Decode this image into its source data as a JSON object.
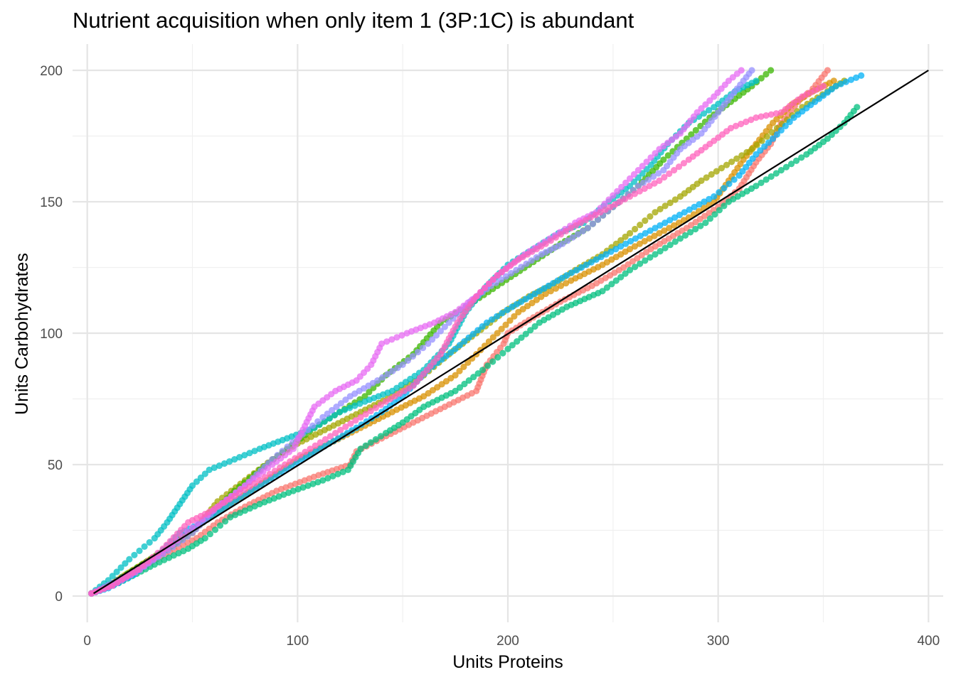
{
  "chart_data": {
    "type": "scatter",
    "title": "Nutrient acquisition when only item 1 (3P:1C) is abundant",
    "xlabel": "Units Proteins",
    "ylabel": "Units Carbohydrates",
    "xlim": [
      -7,
      407
    ],
    "ylim": [
      -10,
      210
    ],
    "x_ticks": [
      0,
      100,
      200,
      300,
      400
    ],
    "x_tick_labels": [
      "0",
      "100",
      "200",
      "300",
      "400"
    ],
    "y_ticks": [
      0,
      50,
      100,
      150,
      200
    ],
    "y_tick_labels": [
      "0",
      "50",
      "100",
      "150",
      "200"
    ],
    "grid": true,
    "legend": "none",
    "point_opacity": 0.75,
    "reference_line": {
      "points": [
        [
          3,
          1
        ],
        [
          400,
          200
        ]
      ],
      "color": "#000000"
    },
    "series": [
      {
        "color": "#F8766D",
        "points": [
          [
            2,
            1
          ],
          [
            10,
            4
          ],
          [
            20,
            8
          ],
          [
            35,
            15
          ],
          [
            52,
            22
          ],
          [
            62,
            28
          ],
          [
            75,
            34
          ],
          [
            90,
            40
          ],
          [
            110,
            46
          ],
          [
            125,
            50
          ],
          [
            128,
            55
          ],
          [
            140,
            60
          ],
          [
            155,
            66
          ],
          [
            170,
            72
          ],
          [
            185,
            78
          ],
          [
            190,
            88
          ],
          [
            198,
            96
          ],
          [
            200,
            100
          ],
          [
            210,
            105
          ],
          [
            225,
            112
          ],
          [
            240,
            118
          ],
          [
            255,
            125
          ],
          [
            268,
            132
          ],
          [
            285,
            140
          ],
          [
            300,
            148
          ],
          [
            310,
            155
          ],
          [
            318,
            165
          ],
          [
            325,
            172
          ],
          [
            330,
            180
          ],
          [
            338,
            188
          ],
          [
            345,
            193
          ],
          [
            352,
            200
          ]
        ]
      },
      {
        "color": "#D89000",
        "points": [
          [
            2,
            1
          ],
          [
            12,
            5
          ],
          [
            22,
            10
          ],
          [
            38,
            18
          ],
          [
            55,
            28
          ],
          [
            70,
            36
          ],
          [
            85,
            44
          ],
          [
            100,
            52
          ],
          [
            115,
            58
          ],
          [
            130,
            64
          ],
          [
            145,
            70
          ],
          [
            160,
            76
          ],
          [
            175,
            84
          ],
          [
            185,
            92
          ],
          [
            195,
            100
          ],
          [
            205,
            108
          ],
          [
            218,
            115
          ],
          [
            230,
            120
          ],
          [
            245,
            126
          ],
          [
            258,
            132
          ],
          [
            272,
            138
          ],
          [
            286,
            144
          ],
          [
            298,
            150
          ],
          [
            305,
            158
          ],
          [
            312,
            166
          ],
          [
            318,
            172
          ],
          [
            326,
            180
          ],
          [
            335,
            187
          ],
          [
            345,
            192
          ],
          [
            355,
            196
          ]
        ]
      },
      {
        "color": "#A3A500",
        "points": [
          [
            2,
            1
          ],
          [
            15,
            6
          ],
          [
            30,
            14
          ],
          [
            50,
            24
          ],
          [
            62,
            36
          ],
          [
            75,
            44
          ],
          [
            88,
            52
          ],
          [
            100,
            58
          ],
          [
            115,
            64
          ],
          [
            130,
            70
          ],
          [
            145,
            76
          ],
          [
            160,
            84
          ],
          [
            172,
            92
          ],
          [
            185,
            100
          ],
          [
            198,
            108
          ],
          [
            210,
            114
          ],
          [
            220,
            118
          ],
          [
            232,
            124
          ],
          [
            245,
            130
          ],
          [
            258,
            138
          ],
          [
            270,
            146
          ],
          [
            282,
            152
          ],
          [
            292,
            158
          ],
          [
            304,
            164
          ],
          [
            316,
            170
          ],
          [
            328,
            178
          ],
          [
            340,
            186
          ],
          [
            352,
            192
          ],
          [
            360,
            196
          ]
        ]
      },
      {
        "color": "#39B600",
        "points": [
          [
            2,
            1
          ],
          [
            12,
            5
          ],
          [
            26,
            12
          ],
          [
            42,
            20
          ],
          [
            58,
            30
          ],
          [
            70,
            40
          ],
          [
            82,
            48
          ],
          [
            95,
            56
          ],
          [
            108,
            64
          ],
          [
            120,
            70
          ],
          [
            132,
            76
          ],
          [
            142,
            84
          ],
          [
            155,
            92
          ],
          [
            168,
            104
          ],
          [
            180,
            110
          ],
          [
            195,
            118
          ],
          [
            210,
            126
          ],
          [
            225,
            134
          ],
          [
            238,
            140
          ],
          [
            250,
            148
          ],
          [
            262,
            156
          ],
          [
            274,
            166
          ],
          [
            285,
            174
          ],
          [
            296,
            182
          ],
          [
            306,
            188
          ],
          [
            316,
            194
          ],
          [
            325,
            200
          ]
        ]
      },
      {
        "color": "#00BF7D",
        "points": [
          [
            2,
            1
          ],
          [
            15,
            5
          ],
          [
            32,
            12
          ],
          [
            48,
            18
          ],
          [
            56,
            22
          ],
          [
            68,
            30
          ],
          [
            82,
            35
          ],
          [
            98,
            40
          ],
          [
            112,
            44
          ],
          [
            124,
            48
          ],
          [
            130,
            56
          ],
          [
            142,
            62
          ],
          [
            150,
            66
          ],
          [
            160,
            72
          ],
          [
            175,
            78
          ],
          [
            188,
            86
          ],
          [
            200,
            94
          ],
          [
            215,
            104
          ],
          [
            228,
            110
          ],
          [
            245,
            116
          ],
          [
            258,
            124
          ],
          [
            270,
            130
          ],
          [
            282,
            136
          ],
          [
            294,
            142
          ],
          [
            305,
            150
          ],
          [
            318,
            156
          ],
          [
            330,
            162
          ],
          [
            342,
            168
          ],
          [
            352,
            174
          ],
          [
            360,
            180
          ],
          [
            366,
            186
          ]
        ]
      },
      {
        "color": "#00BFC4",
        "points": [
          [
            2,
            1
          ],
          [
            10,
            6
          ],
          [
            20,
            14
          ],
          [
            32,
            22
          ],
          [
            38,
            28
          ],
          [
            44,
            35
          ],
          [
            50,
            42
          ],
          [
            58,
            48
          ],
          [
            70,
            52
          ],
          [
            82,
            56
          ],
          [
            95,
            60
          ],
          [
            108,
            64
          ],
          [
            120,
            70
          ],
          [
            132,
            74
          ],
          [
            145,
            78
          ],
          [
            160,
            86
          ],
          [
            172,
            96
          ],
          [
            180,
            108
          ],
          [
            190,
            118
          ],
          [
            200,
            126
          ],
          [
            212,
            132
          ],
          [
            224,
            138
          ],
          [
            236,
            142
          ],
          [
            248,
            150
          ],
          [
            258,
            156
          ],
          [
            268,
            164
          ],
          [
            276,
            172
          ],
          [
            286,
            180
          ],
          [
            298,
            186
          ],
          [
            308,
            192
          ],
          [
            318,
            196
          ]
        ]
      },
      {
        "color": "#00B0F6",
        "points": [
          [
            2,
            1
          ],
          [
            10,
            3
          ],
          [
            22,
            8
          ],
          [
            34,
            16
          ],
          [
            44,
            24
          ],
          [
            55,
            28
          ],
          [
            66,
            34
          ],
          [
            78,
            40
          ],
          [
            90,
            46
          ],
          [
            102,
            52
          ],
          [
            115,
            58
          ],
          [
            128,
            64
          ],
          [
            140,
            70
          ],
          [
            150,
            76
          ],
          [
            162,
            86
          ],
          [
            175,
            94
          ],
          [
            190,
            104
          ],
          [
            202,
            110
          ],
          [
            215,
            116
          ],
          [
            228,
            122
          ],
          [
            242,
            128
          ],
          [
            256,
            134
          ],
          [
            270,
            140
          ],
          [
            284,
            146
          ],
          [
            298,
            152
          ],
          [
            310,
            160
          ],
          [
            318,
            168
          ],
          [
            326,
            174
          ],
          [
            336,
            182
          ],
          [
            346,
            188
          ],
          [
            356,
            194
          ],
          [
            368,
            198
          ]
        ]
      },
      {
        "color": "#9590FF",
        "points": [
          [
            2,
            1
          ],
          [
            12,
            5
          ],
          [
            24,
            10
          ],
          [
            36,
            16
          ],
          [
            50,
            24
          ],
          [
            62,
            34
          ],
          [
            75,
            42
          ],
          [
            88,
            52
          ],
          [
            100,
            60
          ],
          [
            112,
            68
          ],
          [
            125,
            76
          ],
          [
            138,
            82
          ],
          [
            150,
            88
          ],
          [
            162,
            96
          ],
          [
            172,
            104
          ],
          [
            182,
            112
          ],
          [
            192,
            118
          ],
          [
            204,
            124
          ],
          [
            216,
            130
          ],
          [
            226,
            134
          ],
          [
            238,
            140
          ],
          [
            250,
            148
          ],
          [
            262,
            156
          ],
          [
            274,
            162
          ],
          [
            282,
            170
          ],
          [
            292,
            176
          ],
          [
            300,
            184
          ],
          [
            306,
            190
          ],
          [
            312,
            196
          ],
          [
            316,
            200
          ]
        ]
      },
      {
        "color": "#E76BF3",
        "points": [
          [
            2,
            1
          ],
          [
            12,
            4
          ],
          [
            25,
            10
          ],
          [
            38,
            18
          ],
          [
            50,
            26
          ],
          [
            62,
            34
          ],
          [
            75,
            42
          ],
          [
            88,
            50
          ],
          [
            98,
            56
          ],
          [
            108,
            72
          ],
          [
            118,
            78
          ],
          [
            128,
            82
          ],
          [
            135,
            88
          ],
          [
            140,
            96
          ],
          [
            152,
            100
          ],
          [
            165,
            104
          ],
          [
            175,
            108
          ],
          [
            185,
            114
          ],
          [
            195,
            122
          ],
          [
            208,
            130
          ],
          [
            220,
            136
          ],
          [
            232,
            142
          ],
          [
            242,
            146
          ],
          [
            252,
            154
          ],
          [
            262,
            162
          ],
          [
            272,
            170
          ],
          [
            282,
            176
          ],
          [
            290,
            184
          ],
          [
            298,
            190
          ],
          [
            305,
            196
          ],
          [
            311,
            200
          ]
        ]
      },
      {
        "color": "#FF62BC",
        "points": [
          [
            2,
            1
          ],
          [
            12,
            4
          ],
          [
            24,
            10
          ],
          [
            36,
            18
          ],
          [
            48,
            28
          ],
          [
            58,
            32
          ],
          [
            70,
            38
          ],
          [
            82,
            44
          ],
          [
            94,
            50
          ],
          [
            106,
            56
          ],
          [
            118,
            62
          ],
          [
            130,
            68
          ],
          [
            142,
            74
          ],
          [
            155,
            80
          ],
          [
            168,
            92
          ],
          [
            176,
            104
          ],
          [
            185,
            114
          ],
          [
            195,
            122
          ],
          [
            205,
            128
          ],
          [
            218,
            134
          ],
          [
            230,
            140
          ],
          [
            244,
            146
          ],
          [
            258,
            152
          ],
          [
            272,
            158
          ],
          [
            286,
            166
          ],
          [
            296,
            172
          ],
          [
            306,
            178
          ],
          [
            318,
            182
          ],
          [
            330,
            184
          ],
          [
            340,
            190
          ],
          [
            350,
            194
          ]
        ]
      }
    ]
  }
}
